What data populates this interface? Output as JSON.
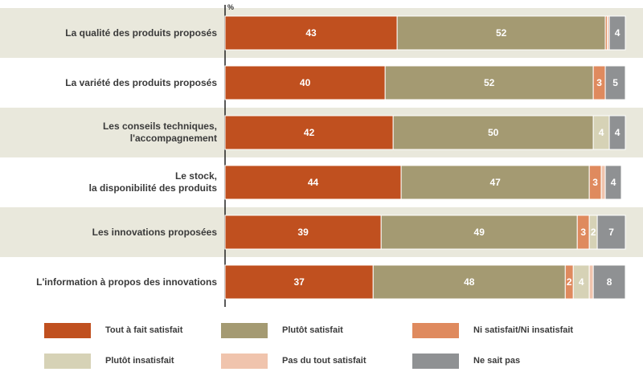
{
  "chart_data": {
    "type": "bar",
    "orientation": "horizontal",
    "stacked": true,
    "unit_label": "%",
    "categories": [
      "La qualité des produits proposés",
      "La variété des produits proposés",
      "Les conseils techniques, l'accompagnement",
      "Le stock, la disponibilité des produits",
      "Les innovations proposées",
      "L'information à propos des innovations"
    ],
    "series": [
      {
        "name": "Tout à fait satisfait",
        "color": "#c0501f",
        "values": [
          43,
          40,
          42,
          44,
          39,
          37
        ],
        "labels": [
          "43",
          "40",
          "42",
          "44",
          "39",
          "37"
        ]
      },
      {
        "name": "Plutôt satisfait",
        "color": "#a49a72",
        "values": [
          52,
          52,
          50,
          47,
          49,
          48
        ],
        "labels": [
          "52",
          "52",
          "50",
          "47",
          "49",
          "48"
        ]
      },
      {
        "name": "Ni satisfait/Ni insatisfait",
        "color": "#df8a5e",
        "values": [
          0.5,
          3,
          0,
          3,
          3,
          2
        ],
        "labels": [
          "",
          "3",
          "",
          "3",
          "3",
          "2"
        ]
      },
      {
        "name": "Plutôt insatisfait",
        "color": "#d6d2b6",
        "values": [
          0,
          0,
          4,
          0,
          2,
          4
        ],
        "labels": [
          "",
          "",
          "4",
          "",
          "2",
          "4"
        ]
      },
      {
        "name": "Pas du tout satisfait",
        "color": "#f0c4ad",
        "values": [
          0.5,
          0,
          0,
          1,
          0,
          1
        ],
        "labels": [
          "",
          "",
          "",
          "",
          "",
          ""
        ]
      },
      {
        "name": "Ne sait pas",
        "color": "#8f9193",
        "values": [
          4,
          5,
          4,
          4,
          7,
          8
        ],
        "labels": [
          "4",
          "5",
          "4",
          "4",
          "7",
          "8"
        ]
      }
    ],
    "xlim": [
      0,
      100
    ],
    "legend_position": "bottom"
  },
  "style": {
    "row_band_color": "#e9e8dc",
    "row_plain_color": "#ffffff"
  }
}
